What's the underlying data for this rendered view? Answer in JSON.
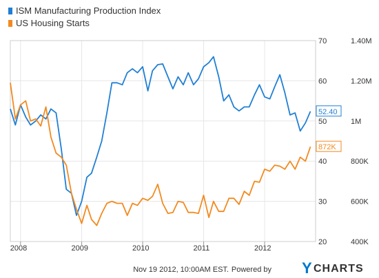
{
  "chart_data": {
    "type": "line",
    "legend_position": "top-left",
    "grid": true,
    "series": [
      {
        "name": "ISM Manufacturing Production Index",
        "color": "#1f7fd4",
        "axis": "left",
        "last_label": "52.40",
        "points": [
          [
            "2007-11-01",
            53.0
          ],
          [
            "2007-12-01",
            49.0
          ],
          [
            "2008-01-01",
            54.0
          ],
          [
            "2008-02-01",
            51.0
          ],
          [
            "2008-03-01",
            49.0
          ],
          [
            "2008-04-01",
            50.0
          ],
          [
            "2008-05-01",
            51.5
          ],
          [
            "2008-06-01",
            50.5
          ],
          [
            "2008-07-01",
            53.0
          ],
          [
            "2008-08-01",
            52.0
          ],
          [
            "2008-09-01",
            43.0
          ],
          [
            "2008-10-01",
            33.0
          ],
          [
            "2008-11-01",
            32.0
          ],
          [
            "2008-12-01",
            26.5
          ],
          [
            "2009-01-01",
            30.0
          ],
          [
            "2009-02-01",
            36.0
          ],
          [
            "2009-03-01",
            37.0
          ],
          [
            "2009-04-01",
            41.0
          ],
          [
            "2009-05-01",
            45.0
          ],
          [
            "2009-06-01",
            52.0
          ],
          [
            "2009-07-01",
            59.5
          ],
          [
            "2009-08-01",
            59.5
          ],
          [
            "2009-09-01",
            59.0
          ],
          [
            "2009-10-01",
            62.0
          ],
          [
            "2009-11-01",
            63.0
          ],
          [
            "2009-12-01",
            62.0
          ],
          [
            "2010-01-01",
            63.5
          ],
          [
            "2010-02-01",
            57.5
          ],
          [
            "2010-03-01",
            62.5
          ],
          [
            "2010-04-01",
            64.0
          ],
          [
            "2010-05-01",
            64.2
          ],
          [
            "2010-06-01",
            61.0
          ],
          [
            "2010-07-01",
            58.0
          ],
          [
            "2010-08-01",
            61.0
          ],
          [
            "2010-09-01",
            59.0
          ],
          [
            "2010-10-01",
            62.0
          ],
          [
            "2010-11-01",
            59.0
          ],
          [
            "2010-12-01",
            60.5
          ],
          [
            "2011-01-01",
            63.5
          ],
          [
            "2011-02-01",
            64.5
          ],
          [
            "2011-03-01",
            66.0
          ],
          [
            "2011-04-01",
            61.0
          ],
          [
            "2011-05-01",
            55.0
          ],
          [
            "2011-06-01",
            56.5
          ],
          [
            "2011-07-01",
            53.5
          ],
          [
            "2011-08-01",
            52.5
          ],
          [
            "2011-09-01",
            53.5
          ],
          [
            "2011-10-01",
            53.5
          ],
          [
            "2011-11-01",
            56.5
          ],
          [
            "2011-12-01",
            59.0
          ],
          [
            "2012-01-01",
            56.0
          ],
          [
            "2012-02-01",
            55.5
          ],
          [
            "2012-03-01",
            58.5
          ],
          [
            "2012-04-01",
            61.5
          ],
          [
            "2012-05-01",
            57.0
          ],
          [
            "2012-06-01",
            51.5
          ],
          [
            "2012-07-01",
            52.0
          ],
          [
            "2012-08-01",
            47.5
          ],
          [
            "2012-09-01",
            49.5
          ],
          [
            "2012-10-01",
            52.4
          ]
        ]
      },
      {
        "name": "US Housing Starts",
        "color": "#f28a1f",
        "axis": "right",
        "last_label": "872K",
        "points": [
          [
            "2007-11-01",
            1190
          ],
          [
            "2007-12-01",
            1010
          ],
          [
            "2008-01-01",
            1080
          ],
          [
            "2008-02-01",
            1100
          ],
          [
            "2008-03-01",
            1000
          ],
          [
            "2008-04-01",
            1010
          ],
          [
            "2008-05-01",
            975
          ],
          [
            "2008-06-01",
            1070
          ],
          [
            "2008-07-01",
            920
          ],
          [
            "2008-08-01",
            840
          ],
          [
            "2008-09-01",
            820
          ],
          [
            "2008-10-01",
            780
          ],
          [
            "2008-11-01",
            640
          ],
          [
            "2008-12-01",
            560
          ],
          [
            "2009-01-01",
            490
          ],
          [
            "2009-02-01",
            580
          ],
          [
            "2009-03-01",
            510
          ],
          [
            "2009-04-01",
            480
          ],
          [
            "2009-05-01",
            540
          ],
          [
            "2009-06-01",
            590
          ],
          [
            "2009-07-01",
            600
          ],
          [
            "2009-08-01",
            590
          ],
          [
            "2009-09-01",
            590
          ],
          [
            "2009-10-01",
            530
          ],
          [
            "2009-11-01",
            590
          ],
          [
            "2009-12-01",
            580
          ],
          [
            "2010-01-01",
            615
          ],
          [
            "2010-02-01",
            605
          ],
          [
            "2010-03-01",
            625
          ],
          [
            "2010-04-01",
            685
          ],
          [
            "2010-05-01",
            590
          ],
          [
            "2010-06-01",
            540
          ],
          [
            "2010-07-01",
            545
          ],
          [
            "2010-08-01",
            600
          ],
          [
            "2010-09-01",
            595
          ],
          [
            "2010-10-01",
            545
          ],
          [
            "2010-11-01",
            545
          ],
          [
            "2010-12-01",
            540
          ],
          [
            "2011-01-01",
            630
          ],
          [
            "2011-02-01",
            520
          ],
          [
            "2011-03-01",
            600
          ],
          [
            "2011-04-01",
            550
          ],
          [
            "2011-05-01",
            550
          ],
          [
            "2011-06-01",
            615
          ],
          [
            "2011-07-01",
            615
          ],
          [
            "2011-08-01",
            585
          ],
          [
            "2011-09-01",
            650
          ],
          [
            "2011-10-01",
            630
          ],
          [
            "2011-11-01",
            700
          ],
          [
            "2011-12-01",
            695
          ],
          [
            "2012-01-01",
            760
          ],
          [
            "2012-02-01",
            750
          ],
          [
            "2012-03-01",
            780
          ],
          [
            "2012-04-01",
            775
          ],
          [
            "2012-05-01",
            760
          ],
          [
            "2012-06-01",
            800
          ],
          [
            "2012-07-01",
            760
          ],
          [
            "2012-08-01",
            820
          ],
          [
            "2012-09-01",
            800
          ],
          [
            "2012-10-01",
            872
          ]
        ]
      }
    ],
    "left_axis": {
      "min": 20,
      "max": 70,
      "ticks": [
        {
          "v": 20,
          "label": "20"
        },
        {
          "v": 30,
          "label": "30"
        },
        {
          "v": 40,
          "label": "40"
        },
        {
          "v": 50,
          "label": "50"
        },
        {
          "v": 60,
          "label": "60"
        },
        {
          "v": 70,
          "label": "70"
        }
      ]
    },
    "right_axis": {
      "min": 400,
      "max": 1400,
      "ticks": [
        {
          "v": 400,
          "label": "400K"
        },
        {
          "v": 600,
          "label": "600K"
        },
        {
          "v": 800,
          "label": "800K"
        },
        {
          "v": 1000,
          "label": "1M"
        },
        {
          "v": 1200,
          "label": "1.20M"
        },
        {
          "v": 1400,
          "label": "1.40M"
        }
      ]
    },
    "x_axis": {
      "min": "2007-11-01",
      "max": "2012-11-01",
      "ticks": [
        {
          "date": "2008-01-01",
          "label": "2008"
        },
        {
          "date": "2009-01-01",
          "label": "2009"
        },
        {
          "date": "2010-01-01",
          "label": "2010"
        },
        {
          "date": "2011-01-01",
          "label": "2011"
        },
        {
          "date": "2012-01-01",
          "label": "2012"
        }
      ]
    }
  },
  "footer": {
    "timestamp": "Nov 19 2012, 10:00AM EST.",
    "powered_by": "Powered by",
    "logo_first": "Y",
    "logo_rest": "CHARTS"
  }
}
